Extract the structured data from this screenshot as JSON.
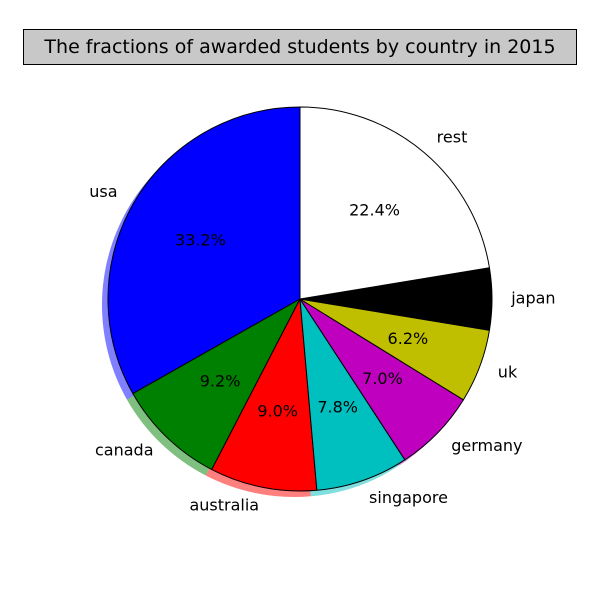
{
  "chart_data": {
    "type": "pie",
    "title": "The fractions of awarded students by country in 2015",
    "start_angle_deg": 90,
    "direction": "counterclockwise",
    "shadow": true,
    "slices": [
      {
        "label": "usa",
        "value": 33.2,
        "pct_label": "33.2%",
        "color": "#0000ff"
      },
      {
        "label": "canada",
        "value": 9.2,
        "pct_label": "9.2%",
        "color": "#008000"
      },
      {
        "label": "australia",
        "value": 9.0,
        "pct_label": "9.0%",
        "color": "#ff0000"
      },
      {
        "label": "singapore",
        "value": 7.8,
        "pct_label": "7.8%",
        "color": "#00bfbf"
      },
      {
        "label": "germany",
        "value": 7.0,
        "pct_label": "7.0%",
        "color": "#bf00bf"
      },
      {
        "label": "uk",
        "value": 6.2,
        "pct_label": "6.2%",
        "color": "#bfbf00"
      },
      {
        "label": "japan",
        "value": 5.2,
        "pct_label": "",
        "color": "#000000"
      },
      {
        "label": "rest",
        "value": 22.4,
        "pct_label": "22.4%",
        "color": "#ffffff"
      }
    ]
  }
}
